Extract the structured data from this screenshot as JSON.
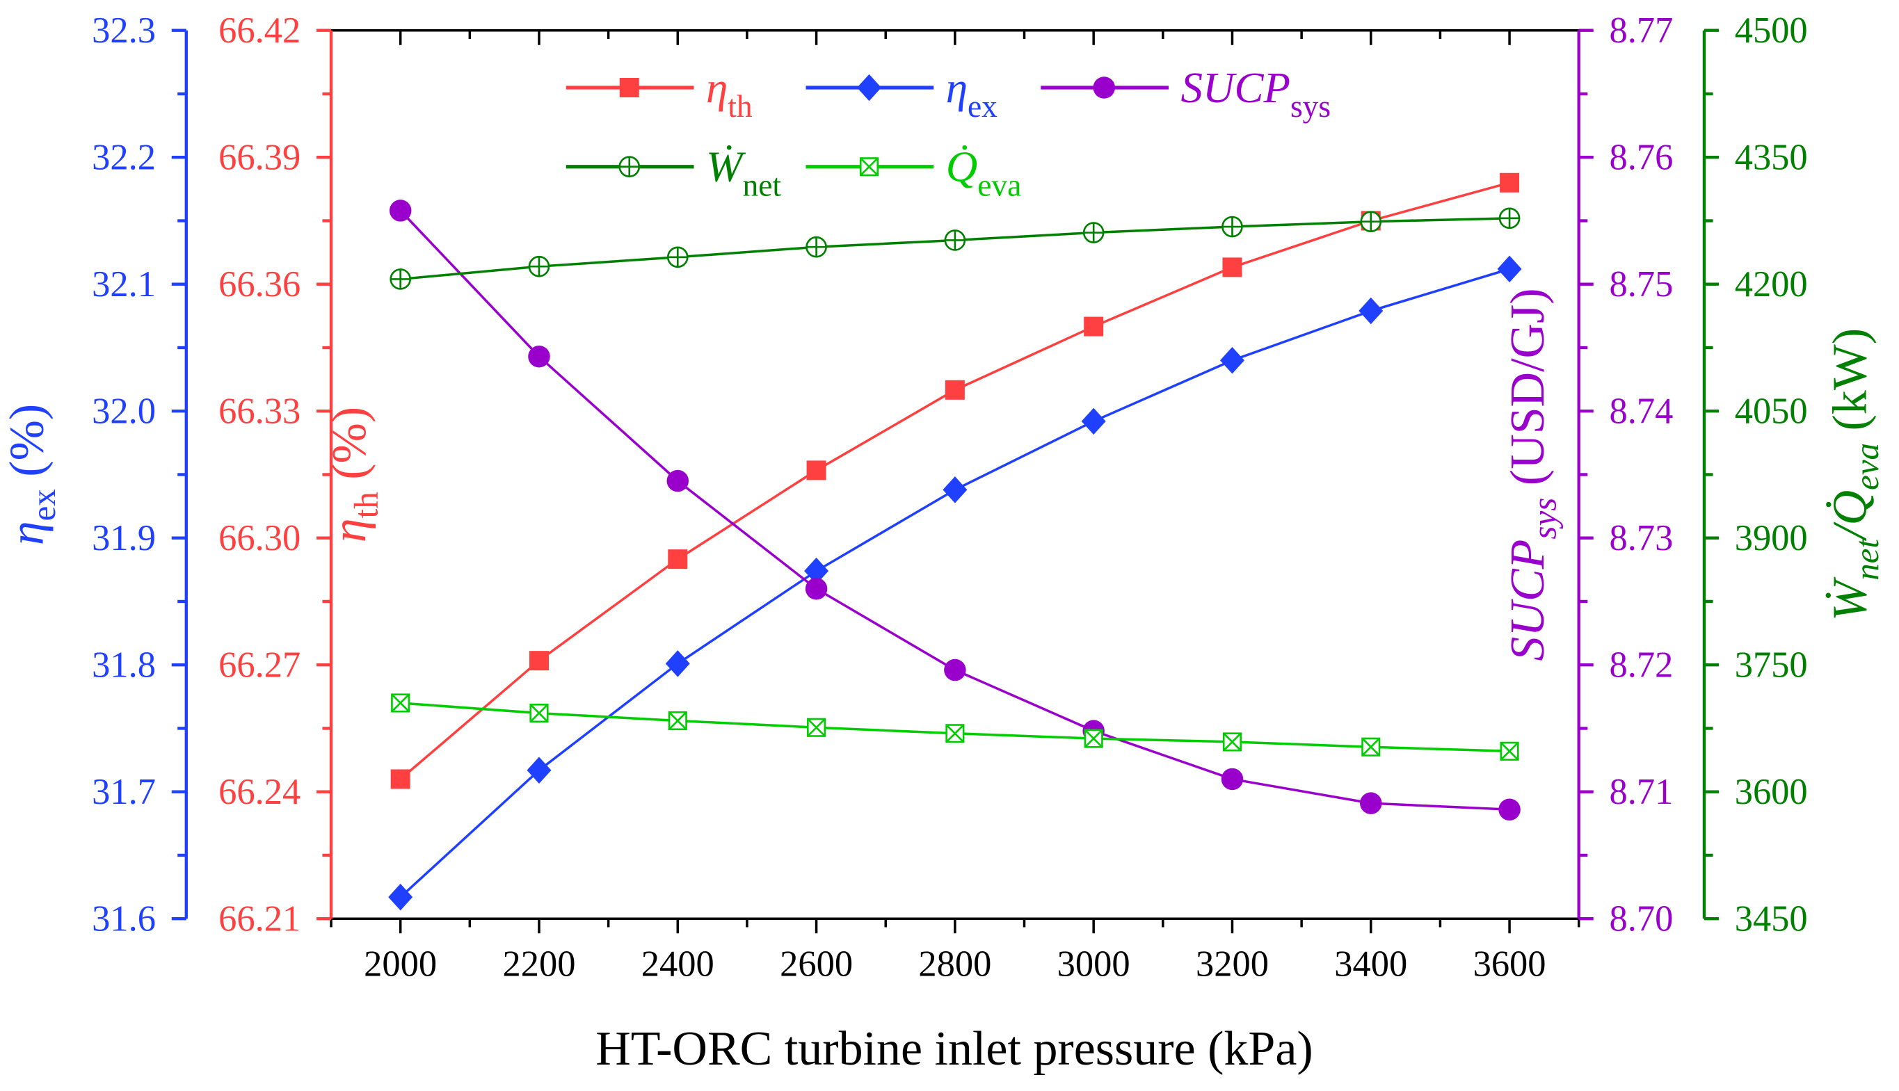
{
  "chart_data": {
    "type": "line",
    "title": "",
    "xlabel": "HT-ORC turbine inlet pressure (kPa)",
    "xlim": [
      1900,
      3700
    ],
    "x": [
      2000,
      2200,
      2400,
      2600,
      2800,
      3000,
      3200,
      3400,
      3600
    ],
    "xticks": [
      "2000",
      "2200",
      "2400",
      "2600",
      "2800",
      "3000",
      "3200",
      "3400",
      "3600"
    ],
    "grid": false,
    "legend_position": "top-left inside",
    "axes": [
      {
        "id": "ex",
        "side": "left-outer",
        "label_main": "η",
        "label_sub": "ex",
        "label_unit": " (%)",
        "ylim": [
          31.6,
          32.3
        ],
        "ticks": [
          "31.6",
          "31.7",
          "31.8",
          "31.9",
          "32.0",
          "32.1",
          "32.2",
          "32.3"
        ],
        "color": "#2040ff"
      },
      {
        "id": "th",
        "side": "left-inner",
        "label_main": "η",
        "label_sub": "th",
        "label_unit": " (%)",
        "ylim": [
          66.21,
          66.42
        ],
        "ticks": [
          "66.21",
          "66.24",
          "66.27",
          "66.30",
          "66.33",
          "66.36",
          "66.39",
          "66.42"
        ],
        "color": "#ff4040"
      },
      {
        "id": "sucp",
        "side": "right-inner",
        "label_main": "SUCP",
        "label_sub": "sys",
        "label_unit": " (USD/GJ)",
        "ylim": [
          8.7,
          8.77
        ],
        "ticks": [
          "8.70",
          "8.71",
          "8.72",
          "8.73",
          "8.74",
          "8.75",
          "8.76",
          "8.77"
        ],
        "color": "#9900cc"
      },
      {
        "id": "w",
        "side": "right-outer",
        "label_main": "Ẇ",
        "label_sub": "net",
        "label_mid": "/Q̇",
        "label_sub2": "eva",
        "label_unit": " (kW)",
        "ylim": [
          3450,
          4500
        ],
        "ticks": [
          "3450",
          "3600",
          "3750",
          "3900",
          "4050",
          "4200",
          "4350",
          "4500"
        ],
        "color": "#008000"
      }
    ],
    "series": [
      {
        "name": "η",
        "sub": "th",
        "axis": "th",
        "marker": "square",
        "color": "#ff4040",
        "values": [
          66.243,
          66.271,
          66.295,
          66.316,
          66.335,
          66.35,
          66.364,
          66.375,
          66.384
        ]
      },
      {
        "name": "η",
        "sub": "ex",
        "axis": "ex",
        "marker": "diamond",
        "color": "#2040ff",
        "values": [
          31.617,
          31.717,
          31.801,
          31.874,
          31.938,
          31.992,
          32.04,
          32.079,
          32.112
        ]
      },
      {
        "name": "SUCP",
        "sub": "sys",
        "axis": "sucp",
        "marker": "circle",
        "color": "#9900cc",
        "values": [
          8.7558,
          8.7443,
          8.7345,
          8.726,
          8.7196,
          8.7148,
          8.711,
          8.7091,
          8.7086
        ]
      },
      {
        "name": "Ẇ",
        "sub": "net",
        "axis": "w",
        "marker": "circle-plus",
        "color": "#008000",
        "values": [
          4206,
          4221,
          4232,
          4244,
          4252,
          4261,
          4268,
          4274,
          4278
        ]
      },
      {
        "name": "Q̇",
        "sub": "eva",
        "axis": "w",
        "marker": "square-x",
        "color": "#00cc00",
        "values": [
          3705,
          3693,
          3684,
          3676,
          3669,
          3663,
          3659,
          3653,
          3648
        ]
      }
    ]
  }
}
